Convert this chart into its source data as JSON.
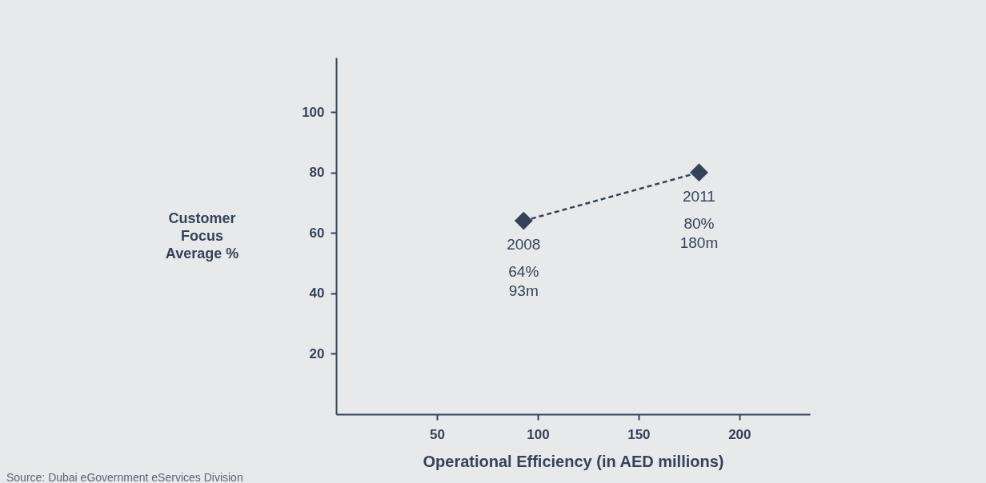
{
  "chart_data": {
    "type": "line",
    "xlabel": "Operational Efficiency (in AED millions)",
    "ylabel": "Customer Focus Average %",
    "series": [
      {
        "color": "#34435a",
        "x": [
          93,
          180
        ],
        "values": [
          64,
          80
        ]
      }
    ],
    "xlim": [
      0,
      235
    ],
    "ylim": [
      0,
      118
    ],
    "xticks": [
      50,
      100,
      150,
      200
    ],
    "yticks": [
      20,
      40,
      60,
      80,
      100
    ],
    "marker": "diamond",
    "line_style": "dashed",
    "annotations": [
      {
        "text": "2008",
        "x": 93,
        "y": 64
      },
      "64%",
      "93m",
      {
        "text": "2011",
        "x": 180,
        "y": 80
      },
      "80%",
      "180m",
      "Source: Dubai eGovernment eServices Division"
    ]
  }
}
